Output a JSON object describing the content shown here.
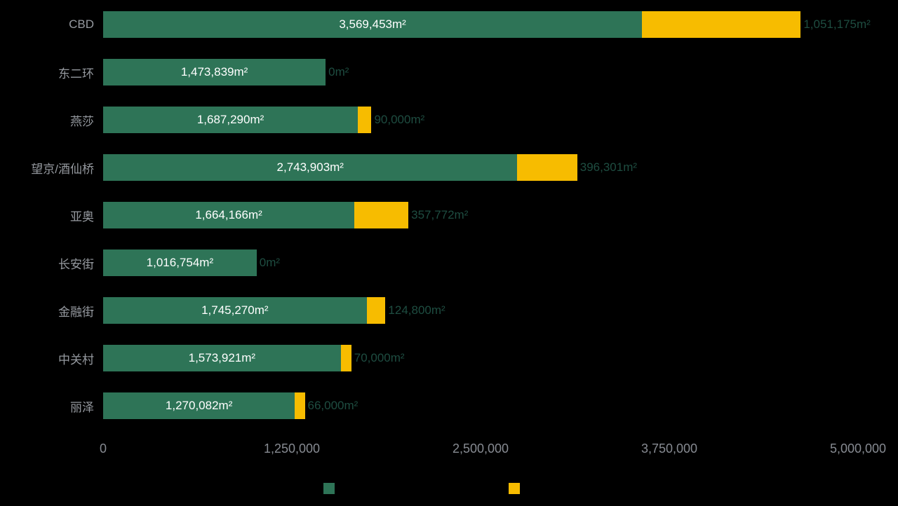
{
  "chart_data": {
    "type": "bar",
    "orientation": "horizontal",
    "stacked": true,
    "title": "",
    "xlabel": "",
    "ylabel": "",
    "unit": "m²",
    "xlim": [
      0,
      5000000
    ],
    "x_ticks": [
      "0",
      "1,250,000",
      "2,500,000",
      "3,750,000",
      "5,000,000"
    ],
    "x_tick_values": [
      0,
      1250000,
      2500000,
      3750000,
      5000000
    ],
    "grid": false,
    "categories": [
      "CBD",
      "东二环",
      "燕莎",
      "望京/酒仙桥",
      "亚奥",
      "长安街",
      "金融街",
      "中关村",
      "丽泽"
    ],
    "series": [
      {
        "name": "series-green",
        "color": "#2E7457",
        "values": [
          3569453,
          1473839,
          1687290,
          2743903,
          1664166,
          1016754,
          1745270,
          1573921,
          1270082
        ],
        "labels": [
          "3,569,453m²",
          "1,473,839m²",
          "1,687,290m²",
          "2,743,903m²",
          "1,664,166m²",
          "1,016,754m²",
          "1,745,270m²",
          "1,573,921m²",
          "1,270,082m²"
        ],
        "label_position": "inside-center",
        "label_color": "#FFFFFF"
      },
      {
        "name": "series-yellow",
        "color": "#F7BC00",
        "values": [
          1051175,
          0,
          90000,
          396301,
          357772,
          0,
          124800,
          70000,
          66000
        ],
        "labels": [
          "1,051,175m²",
          "0m²",
          "90,000m²",
          "396,301m²",
          "357,772m²",
          "0m²",
          "124,800m²",
          "70,000m²",
          "66,000m²"
        ],
        "label_position": "outside-right",
        "label_color": "#1E4D41"
      }
    ],
    "legend": {
      "position": "bottom",
      "items": [
        {
          "swatch_color": "#2E7457",
          "label": ""
        },
        {
          "swatch_color": "#F7BC00",
          "label": ""
        }
      ]
    }
  },
  "style": {
    "background": "#000000",
    "category_label_color": "#969AA0",
    "axis_label_color": "#878B92"
  }
}
